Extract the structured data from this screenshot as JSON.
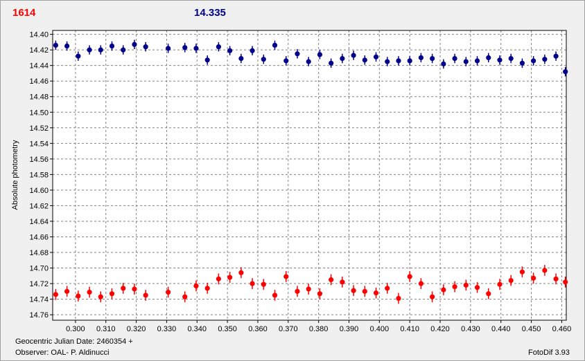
{
  "header": {
    "left_value": "1614",
    "center_value": "14.335"
  },
  "footer": {
    "julian_date": "Geocentric Julian Date: 2460354 +",
    "observer": "Observer: OAL- P. Aldinucci",
    "software": "FotoDif 3.93"
  },
  "colors": {
    "series_red": "#ff0000",
    "series_blue": "#00008b",
    "grid": "#808080"
  },
  "chart_data": {
    "type": "scatter",
    "title": "",
    "xlabel": "",
    "ylabel": "Absolute photometry",
    "y_inverted": true,
    "grid": true,
    "xlim": [
      0.2925,
      0.4615
    ],
    "ylim": [
      14.395,
      14.767
    ],
    "xticks": [
      0.3,
      0.31,
      0.32,
      0.33,
      0.34,
      0.35,
      0.36,
      0.37,
      0.38,
      0.39,
      0.4,
      0.41,
      0.42,
      0.43,
      0.44,
      0.45,
      0.46
    ],
    "xtick_labels": [
      "0.300",
      "0.310",
      "0.320",
      "0.330",
      "0.340",
      "0.350",
      "0.360",
      "0.370",
      "0.380",
      "0.390",
      "0.400",
      "0.410",
      "0.420",
      "0.430",
      "0.440",
      "0.450",
      "0.460"
    ],
    "yticks": [
      14.4,
      14.42,
      14.44,
      14.46,
      14.48,
      14.5,
      14.52,
      14.54,
      14.56,
      14.58,
      14.6,
      14.62,
      14.64,
      14.66,
      14.68,
      14.7,
      14.72,
      14.74,
      14.76
    ],
    "ytick_labels": [
      "14.40",
      "14.42",
      "14.44",
      "14.46",
      "14.48",
      "14.50",
      "14.52",
      "14.54",
      "14.56",
      "14.58",
      "14.60",
      "14.62",
      "14.64",
      "14.66",
      "14.68",
      "14.70",
      "14.72",
      "14.74",
      "14.76"
    ],
    "series": [
      {
        "color": "#00008b",
        "error": 0.006,
        "x": [
          0.2935,
          0.2972,
          0.3009,
          0.3046,
          0.3083,
          0.312,
          0.3157,
          0.3194,
          0.3231,
          0.3305,
          0.336,
          0.3397,
          0.3434,
          0.3471,
          0.3508,
          0.3545,
          0.3582,
          0.3619,
          0.3656,
          0.3693,
          0.373,
          0.3767,
          0.3804,
          0.3841,
          0.3878,
          0.3915,
          0.3952,
          0.3989,
          0.4026,
          0.4063,
          0.41,
          0.4137,
          0.4174,
          0.4211,
          0.4248,
          0.4285,
          0.4322,
          0.4359,
          0.4396,
          0.4433,
          0.447,
          0.4507,
          0.4544,
          0.4581,
          0.4612
        ],
        "y": [
          14.414,
          14.415,
          14.428,
          14.42,
          14.42,
          14.415,
          14.42,
          14.413,
          14.416,
          14.418,
          14.417,
          14.418,
          14.433,
          14.416,
          14.421,
          14.431,
          14.421,
          14.432,
          14.414,
          14.434,
          14.425,
          14.435,
          14.426,
          14.437,
          14.431,
          14.427,
          14.433,
          14.429,
          14.435,
          14.434,
          14.434,
          14.43,
          14.431,
          14.438,
          14.431,
          14.435,
          14.434,
          14.43,
          14.433,
          14.431,
          14.437,
          14.434,
          14.432,
          14.428,
          14.448
        ]
      },
      {
        "color": "#ff0000",
        "error": 0.007,
        "x": [
          0.2935,
          0.2972,
          0.3009,
          0.3046,
          0.3083,
          0.312,
          0.3157,
          0.3194,
          0.3231,
          0.3305,
          0.336,
          0.3397,
          0.3434,
          0.3471,
          0.3508,
          0.3545,
          0.3582,
          0.3619,
          0.3656,
          0.3693,
          0.373,
          0.3767,
          0.3804,
          0.3841,
          0.3878,
          0.3915,
          0.3952,
          0.3989,
          0.4026,
          0.4063,
          0.41,
          0.4137,
          0.4174,
          0.4211,
          0.4248,
          0.4285,
          0.4322,
          0.4359,
          0.4396,
          0.4433,
          0.447,
          0.4507,
          0.4544,
          0.4581,
          0.4612
        ],
        "y": [
          14.734,
          14.73,
          14.736,
          14.731,
          14.737,
          14.733,
          14.726,
          14.727,
          14.735,
          14.731,
          14.737,
          14.723,
          14.726,
          14.714,
          14.712,
          14.706,
          14.72,
          14.721,
          14.735,
          14.711,
          14.73,
          14.727,
          14.733,
          14.715,
          14.718,
          14.729,
          14.73,
          14.732,
          14.726,
          14.739,
          14.711,
          14.72,
          14.737,
          14.728,
          14.724,
          14.722,
          14.725,
          14.733,
          14.721,
          14.716,
          14.705,
          14.713,
          14.703,
          14.714,
          14.718
        ]
      }
    ]
  }
}
